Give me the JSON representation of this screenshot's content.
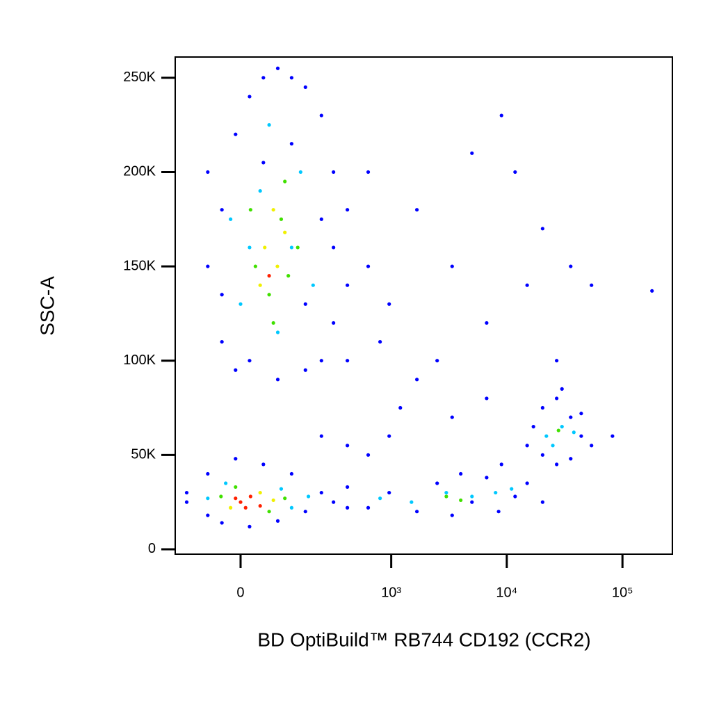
{
  "chart_data": {
    "type": "scatter",
    "x_label": "BD OptiBuild™ RB744 CD192 (CCR2)",
    "y_label": "SSC-A",
    "xscale": "biexponential",
    "xlim": [
      -170,
      270000
    ],
    "ylim": [
      -2600,
      261000
    ],
    "xticks": [
      0,
      {
        "value": 1000,
        "label": "10³"
      },
      {
        "value": 10000,
        "label": "10⁴"
      },
      {
        "value": 100000,
        "label": "10⁵"
      }
    ],
    "yticks": [
      0,
      {
        "value": 50000,
        "label": "50K"
      },
      {
        "value": 100000,
        "label": "100K"
      },
      {
        "value": 150000,
        "label": "150K"
      },
      {
        "value": 200000,
        "label": "200K"
      },
      {
        "value": 250000,
        "label": "250K"
      }
    ],
    "series": [
      {
        "color": "#0000ff",
        "x": [
          -38,
          -70,
          -70,
          -10,
          18,
          47,
          81,
          120,
          168,
          240,
          310,
          413,
          630,
          960,
          240,
          168,
          81,
          18,
          -38,
          -10,
          310,
          413,
          168,
          240,
          120,
          47,
          -38,
          310,
          413,
          630,
          1670,
          3370,
          6700,
          11800,
          20400,
          35700,
          1670,
          3370,
          960,
          630,
          413,
          240,
          6700,
          2500,
          5000,
          9000,
          27000,
          54000,
          82000,
          180000,
          1200,
          800,
          15000,
          4000,
          -129,
          -129,
          -70,
          -70,
          -38,
          18,
          47,
          81,
          120,
          168,
          240,
          310,
          413,
          413,
          -10,
          630,
          960,
          1670,
          2500,
          3370,
          5000,
          6700,
          8500,
          11800,
          15000,
          20400,
          9000,
          15000,
          20400,
          27000,
          35700,
          44000,
          54000,
          20400,
          27000,
          35700,
          17000,
          44000,
          30000
        ],
        "values": [
          110000,
          150000,
          200000,
          95000,
          240000,
          250000,
          255000,
          250000,
          245000,
          230000,
          200000,
          180000,
          150000,
          130000,
          100000,
          95000,
          90000,
          100000,
          180000,
          220000,
          120000,
          140000,
          130000,
          175000,
          215000,
          205000,
          135000,
          160000,
          100000,
          200000,
          180000,
          150000,
          120000,
          200000,
          170000,
          150000,
          90000,
          70000,
          60000,
          50000,
          55000,
          60000,
          80000,
          100000,
          210000,
          230000,
          100000,
          140000,
          60000,
          137000,
          75000,
          110000,
          140000,
          40000,
          25000,
          30000,
          18000,
          40000,
          14000,
          12000,
          45000,
          15000,
          40000,
          20000,
          30000,
          25000,
          22000,
          33000,
          48000,
          22000,
          30000,
          20000,
          35000,
          18000,
          25000,
          38000,
          20000,
          28000,
          35000,
          25000,
          45000,
          55000,
          75000,
          45000,
          70000,
          60000,
          55000,
          50000,
          80000,
          48000,
          65000,
          72000,
          85000
        ]
      },
      {
        "color": "#00c8ff",
        "x": [
          0,
          40,
          120,
          81,
          150,
          18,
          200,
          60,
          -20,
          -70,
          120,
          180,
          -30,
          90,
          800,
          1500,
          3000,
          5000,
          8000,
          11000,
          22000,
          30000,
          25000,
          38000
        ],
        "values": [
          130000,
          190000,
          160000,
          115000,
          200000,
          160000,
          140000,
          225000,
          175000,
          27000,
          22000,
          28000,
          35000,
          32000,
          27000,
          25000,
          30000,
          28000,
          30000,
          32000,
          60000,
          65000,
          55000,
          62000
        ]
      },
      {
        "color": "#40e000",
        "x": [
          30,
          90,
          60,
          100,
          140,
          20,
          70,
          110,
          -40,
          60,
          100,
          -10,
          3000,
          4000,
          28000
        ],
        "values": [
          150000,
          175000,
          135000,
          195000,
          160000,
          180000,
          120000,
          145000,
          28000,
          20000,
          27000,
          33000,
          28000,
          26000,
          63000
        ]
      },
      {
        "color": "#f0f000",
        "x": [
          50,
          80,
          70,
          100,
          40,
          -20,
          40,
          70
        ],
        "values": [
          160000,
          150000,
          180000,
          168000,
          140000,
          22000,
          30000,
          26000
        ]
      },
      {
        "color": "#ff2000",
        "x": [
          0,
          20,
          40,
          -10,
          10,
          60
        ],
        "values": [
          25000,
          28000,
          23000,
          27000,
          22000,
          145000
        ]
      }
    ]
  }
}
